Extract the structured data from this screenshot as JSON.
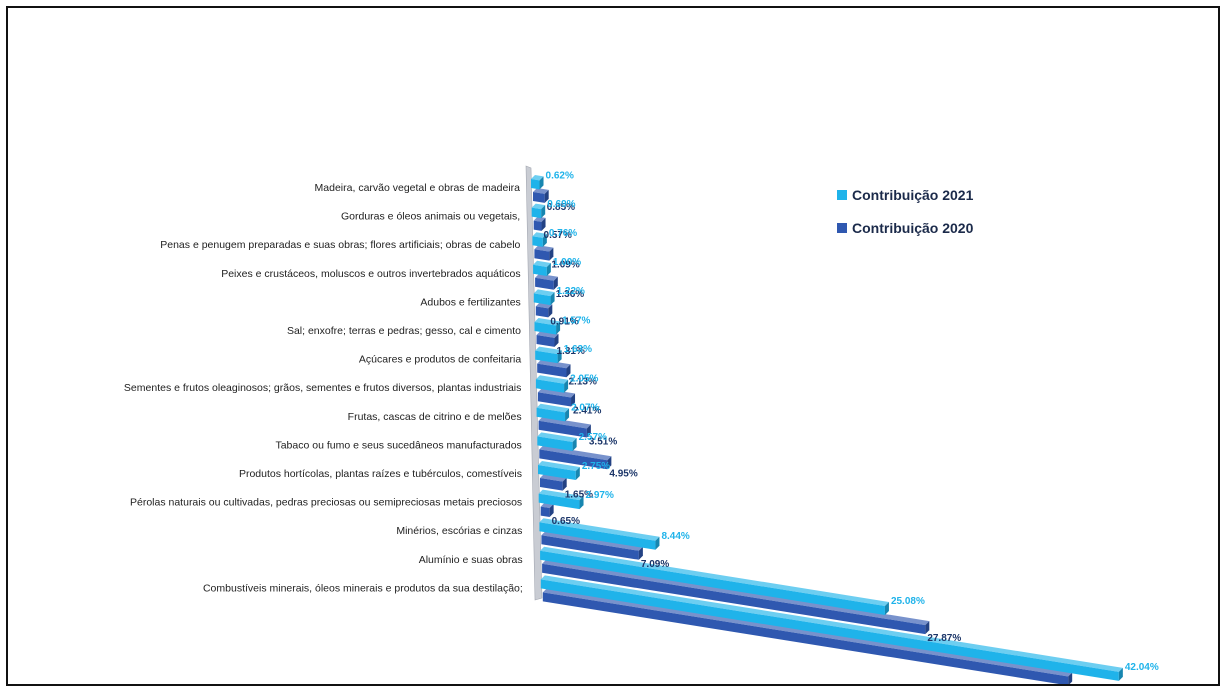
{
  "chart_data": {
    "type": "bar",
    "orientation": "horizontal",
    "style": "3d-perspective",
    "categories": [
      "Madeira, carvão vegetal e obras de madeira",
      "Gorduras e óleos animais ou vegetais,",
      "Penas e penugem preparadas e suas obras; flores artificiais; obras de cabelo",
      "Peixes e crustáceos, moluscos e outros invertebrados aquáticos",
      "Adubos e fertilizantes",
      "Sal; enxofre; terras e pedras; gesso, cal e cimento",
      "Açúcares e produtos de confeitaria",
      "Sementes e frutos oleaginosos; grãos, sementes e frutos diversos, plantas industriais",
      "Frutas, cascas de citrino e de melões",
      "Tabaco ou fumo e seus sucedâneos manufacturados",
      "Produtos hortícolas, plantas raízes e tubérculos, comestíveis",
      "Pérolas naturais ou cultivadas, pedras preciosas ou semipreciosas metais preciosos",
      "Minérios, escórias e cinzas",
      "Alumínio e suas obras",
      "Combustíveis minerais, óleos minerais e produtos da sua destilação;"
    ],
    "series": [
      {
        "name": "Contribuição 2021",
        "color": "#1fb3ea",
        "values": [
          0.62,
          0.69,
          0.76,
          1.0,
          1.22,
          1.57,
          1.63,
          2.05,
          2.07,
          2.57,
          2.75,
          2.97,
          8.44,
          25.08,
          42.04
        ],
        "labels": [
          "0.62%",
          "0.69%",
          "0.76%",
          "1.00%",
          "1.22%",
          "1.57%",
          "1.63%",
          "2.05%",
          "2.07%",
          "2.57%",
          "2.75%",
          "2.97%",
          "8.44%",
          "25.08%",
          "42.04%"
        ]
      },
      {
        "name": "Contribuição 2020",
        "color": "#2f58b0",
        "values": [
          0.85,
          0.57,
          1.09,
          1.36,
          0.91,
          1.31,
          2.13,
          2.41,
          3.51,
          4.95,
          1.65,
          0.65,
          7.09,
          27.87,
          38.21
        ],
        "labels": [
          "0.85%",
          "0.57%",
          "1.09%",
          "1.36%",
          "0.91%",
          "1.31%",
          "2.13%",
          "2.41%",
          "3.51%",
          "4.95%",
          "1.65%",
          "0.65%",
          "7.09%",
          "27.87%",
          "38.21%"
        ]
      }
    ],
    "title": "",
    "xlabel": "",
    "ylabel": "",
    "grid": false,
    "legend_position": "top-right",
    "label_colors": {
      "series_2021": "#1fb3ea",
      "series_2020": "#1b3568"
    }
  }
}
